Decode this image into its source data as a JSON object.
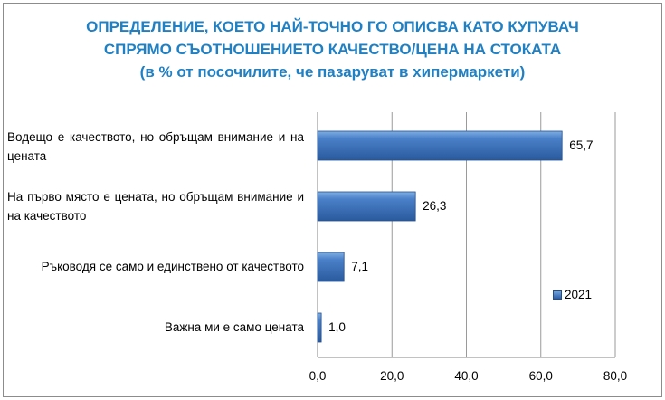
{
  "chart_data": {
    "type": "bar",
    "orientation": "horizontal",
    "title_lines": [
      "ОПРЕДЕЛЕНИЕ, КОЕТО НАЙ-ТОЧНО ГО ОПИСВА КАТО КУПУВАЧ",
      "СПРЯМО СЪОТНОШЕНИЕТО КАЧЕСТВО/ЦЕНА НА СТОКАТА",
      "(в % от посочилите, че пазаруват в хипермаркети)"
    ],
    "categories": [
      "Водещо е качеството, но обръщам внимание и на цената",
      "На първо място е цената, но обръщам внимание и на качеството",
      "Ръководя се само и единствено от качеството",
      "Важна ми е само цената"
    ],
    "series": [
      {
        "name": "2021",
        "values": [
          65.7,
          26.3,
          7.1,
          1.0
        ],
        "labels": [
          "65,7",
          "26,3",
          "7,1",
          "1,0"
        ]
      }
    ],
    "xlim": [
      0,
      80
    ],
    "xticks": [
      "0,0",
      "20,0",
      "40,0",
      "60,0",
      "80,0"
    ],
    "grid": "vertical",
    "legend": "right",
    "colors": {
      "bar": "#3a6fb8",
      "title": "#1f80c4"
    }
  }
}
